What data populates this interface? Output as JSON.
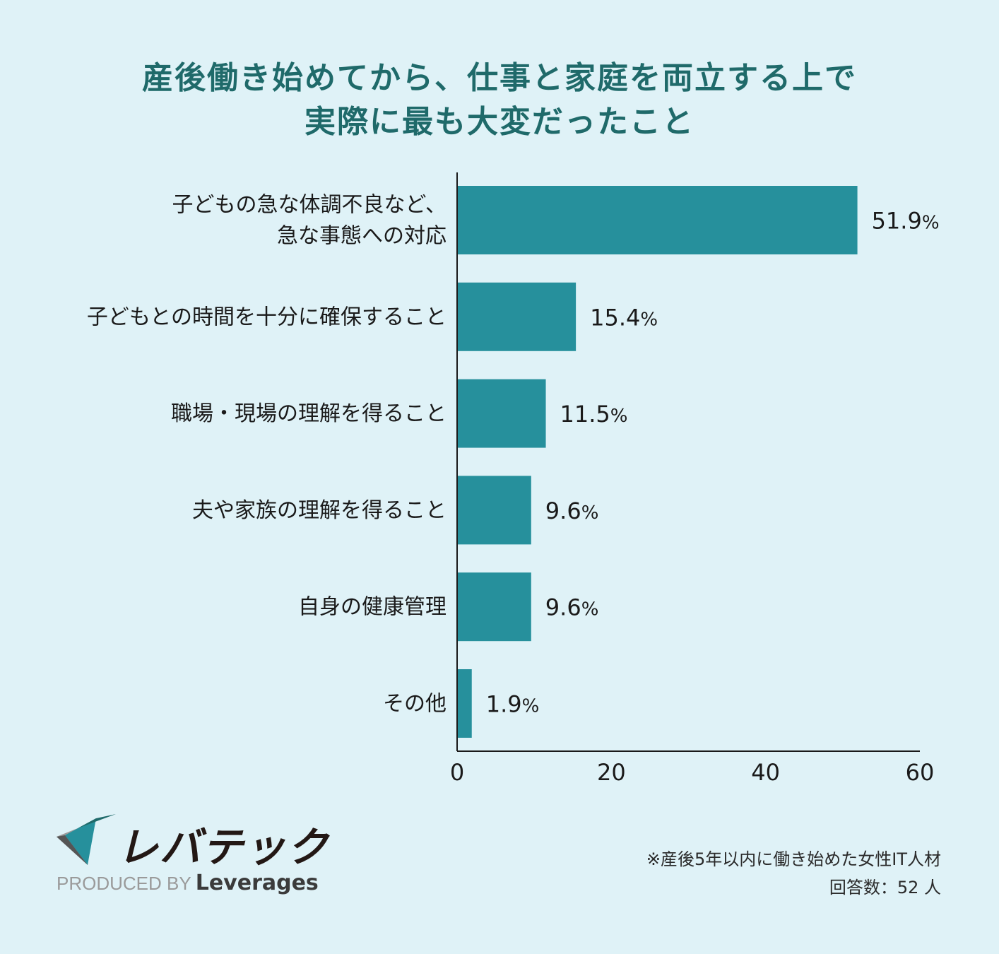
{
  "title_lines": [
    "産後働き始めてから、仕事と家庭を両立する上で",
    "実際に最も大変だったこと"
  ],
  "colors": {
    "bar": "#26909c",
    "title": "#1f6a6a",
    "background": "#dff2f7"
  },
  "chart_data": {
    "type": "bar",
    "orientation": "horizontal",
    "categories": [
      [
        "子どもの急な体調不良など、",
        "急な事態への対応"
      ],
      [
        "子どもとの時間を十分に確保すること"
      ],
      [
        "職場・現場の理解を得ること"
      ],
      [
        "夫や家族の理解を得ること"
      ],
      [
        "自身の健康管理"
      ],
      [
        "その他"
      ]
    ],
    "values": [
      51.9,
      15.4,
      11.5,
      9.6,
      9.6,
      1.9
    ],
    "value_labels": [
      "51.9",
      "15.4",
      "11.5",
      "9.6",
      "9.6",
      "1.9"
    ],
    "value_unit": "%",
    "xlim": [
      0,
      60
    ],
    "xticks": [
      0,
      20,
      40,
      60
    ],
    "grid": false,
    "legend": "none"
  },
  "footnote": {
    "line1": "※産後5年以内に働き始めた女性IT人材",
    "line2": "回答数：52 人"
  },
  "logo": {
    "wordmark": "レバテック",
    "produced_by": "PRODUCED BY",
    "brand": "Leverages"
  }
}
